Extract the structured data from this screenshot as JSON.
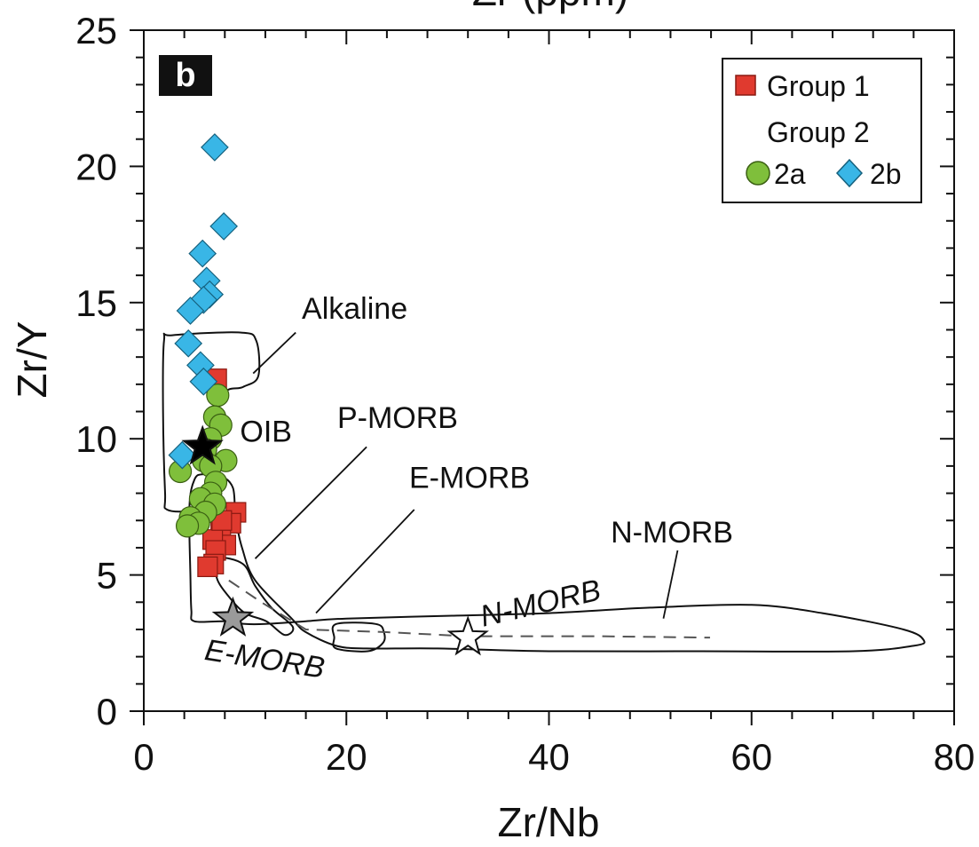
{
  "chart_data": {
    "type": "scatter",
    "panel_label": "b",
    "top_axis_title": "Zr (ppm)",
    "xlabel": "Zr/Nb",
    "ylabel": "Zr/Y",
    "xlim": [
      0,
      80
    ],
    "ylim": [
      0,
      25
    ],
    "xticks": [
      0,
      20,
      40,
      60,
      80
    ],
    "yticks": [
      0,
      5,
      10,
      15,
      20,
      25
    ],
    "legend": {
      "position": "top-right",
      "group1_label": "Group 1",
      "group2_label": "Group 2",
      "sub_2a": "2a",
      "sub_2b": "2b"
    },
    "colors": {
      "group1": "#e03a2f",
      "group2a": "#7fbf3b",
      "group2b": "#39b6e6",
      "oib_star": "#000000",
      "emorb_star": "#9a9a9a",
      "nmorb_star": "#ffffff"
    },
    "series": [
      {
        "name": "Group 1",
        "marker": "square",
        "points": [
          [
            7.2,
            12.2
          ],
          [
            9.1,
            7.3
          ],
          [
            8.6,
            6.9
          ],
          [
            7.6,
            6.6
          ],
          [
            8.1,
            6.1
          ],
          [
            6.8,
            6.3
          ],
          [
            7.1,
            5.9
          ],
          [
            6.9,
            5.4
          ],
          [
            6.3,
            5.3
          ],
          [
            7.7,
            7.0
          ]
        ]
      },
      {
        "name": "2a",
        "marker": "circle",
        "points": [
          [
            7.3,
            11.6
          ],
          [
            7.0,
            10.8
          ],
          [
            7.6,
            10.5
          ],
          [
            6.6,
            10.0
          ],
          [
            6.1,
            9.6
          ],
          [
            5.9,
            9.2
          ],
          [
            8.1,
            9.2
          ],
          [
            6.6,
            9.0
          ],
          [
            3.6,
            8.8
          ],
          [
            7.1,
            8.4
          ],
          [
            6.6,
            8.0
          ],
          [
            5.6,
            7.8
          ],
          [
            7.0,
            7.6
          ],
          [
            6.1,
            7.3
          ],
          [
            4.6,
            7.1
          ],
          [
            5.4,
            6.9
          ],
          [
            4.3,
            6.8
          ]
        ]
      },
      {
        "name": "2b",
        "marker": "diamond",
        "points": [
          [
            7.0,
            20.7
          ],
          [
            7.9,
            17.8
          ],
          [
            5.8,
            16.8
          ],
          [
            6.2,
            15.8
          ],
          [
            6.5,
            15.3
          ],
          [
            5.9,
            15.1
          ],
          [
            4.6,
            14.7
          ],
          [
            4.4,
            13.5
          ],
          [
            5.6,
            12.7
          ],
          [
            5.9,
            12.1
          ],
          [
            3.8,
            9.4
          ]
        ]
      }
    ],
    "reference_stars": [
      {
        "name": "OIB",
        "x": 5.8,
        "y": 9.7
      },
      {
        "name": "E-MORB",
        "x": 8.8,
        "y": 3.4
      },
      {
        "name": "N-MORB",
        "x": 32.0,
        "y": 2.7
      }
    ],
    "fields": [
      {
        "name": "Alkaline",
        "outline": [
          [
            2.8,
            13.8
          ],
          [
            9.5,
            13.9
          ],
          [
            11.1,
            13.6
          ],
          [
            11.3,
            12.3
          ],
          [
            9.8,
            11.9
          ],
          [
            7.8,
            11.6
          ],
          [
            6.8,
            9.7
          ],
          [
            6.0,
            8.0
          ],
          [
            4.8,
            7.4
          ],
          [
            2.3,
            7.4
          ],
          [
            2.1,
            8.0
          ],
          [
            1.9,
            11.0
          ],
          [
            2.0,
            13.6
          ]
        ]
      },
      {
        "name": "OIB",
        "outline": [
          [
            5.9,
            8.7
          ],
          [
            7.8,
            8.6
          ],
          [
            8.8,
            8.2
          ],
          [
            9.0,
            7.4
          ],
          [
            9.1,
            7.0
          ],
          [
            9.7,
            6.0
          ],
          [
            11.0,
            4.8
          ],
          [
            14.6,
            3.4
          ],
          [
            16.0,
            2.9
          ],
          [
            19.0,
            2.4
          ],
          [
            22.0,
            2.3
          ],
          [
            29.0,
            2.3
          ],
          [
            40.0,
            2.2
          ],
          [
            55.0,
            2.2
          ],
          [
            70.0,
            2.2
          ],
          [
            76.0,
            2.4
          ],
          [
            77.0,
            2.6
          ],
          [
            75.0,
            3.0
          ],
          [
            67.0,
            3.6
          ],
          [
            60.0,
            3.9
          ],
          [
            50.0,
            3.8
          ],
          [
            40.0,
            3.6
          ],
          [
            30.0,
            3.5
          ],
          [
            20.0,
            3.4
          ],
          [
            16.0,
            3.3
          ],
          [
            12.0,
            3.2
          ],
          [
            10.0,
            3.2
          ],
          [
            8.0,
            3.3
          ],
          [
            5.0,
            3.3
          ],
          [
            4.7,
            3.7
          ],
          [
            4.6,
            5.0
          ],
          [
            4.5,
            7.5
          ],
          [
            5.0,
            8.5
          ]
        ]
      },
      {
        "name": "P-MORB",
        "outline": [
          [
            7.4,
            5.6
          ],
          [
            9.8,
            5.4
          ],
          [
            11.0,
            4.6
          ],
          [
            12.6,
            3.8
          ],
          [
            14.7,
            3.1
          ],
          [
            13.9,
            2.8
          ],
          [
            12.1,
            3.3
          ],
          [
            10.0,
            3.6
          ],
          [
            8.4,
            4.2
          ],
          [
            7.2,
            4.9
          ]
        ]
      },
      {
        "name": "E-MORB",
        "outline": [
          [
            19.0,
            3.2
          ],
          [
            22.9,
            3.2
          ],
          [
            23.7,
            2.9
          ],
          [
            23.6,
            2.5
          ],
          [
            22.1,
            2.2
          ],
          [
            19.0,
            2.3
          ],
          [
            18.8,
            2.7
          ]
        ]
      }
    ],
    "dashed_trend": [
      [
        8.4,
        4.8
      ],
      [
        11.6,
        4.0
      ],
      [
        16.0,
        3.0
      ],
      [
        24.0,
        2.9
      ],
      [
        32.0,
        2.75
      ],
      [
        45.0,
        2.75
      ],
      [
        55.9,
        2.7
      ]
    ],
    "annotations": [
      {
        "text": "Alkaline",
        "x": 15.6,
        "y": 14.4
      },
      {
        "text": "OIB",
        "x": 9.5,
        "y": 9.9
      },
      {
        "text": "P-MORB",
        "x": 19.1,
        "y": 10.4
      },
      {
        "text": "E-MORB",
        "x": 26.2,
        "y": 8.2
      },
      {
        "text": "N-MORB",
        "x": 46.1,
        "y": 6.2
      },
      {
        "text": "N-MORB",
        "x": 33.5,
        "y": 3.1
      },
      {
        "text": "E-MORB",
        "x": 5.9,
        "y": 1.9
      }
    ],
    "leaders": [
      {
        "from": [
          15.0,
          13.9
        ],
        "to": [
          10.8,
          12.4
        ]
      },
      {
        "from": [
          22.0,
          9.7
        ],
        "to": [
          11.0,
          5.6
        ]
      },
      {
        "from": [
          26.7,
          7.4
        ],
        "to": [
          17.0,
          3.6
        ]
      },
      {
        "from": [
          52.7,
          5.9
        ],
        "to": [
          51.3,
          3.4
        ]
      }
    ]
  }
}
